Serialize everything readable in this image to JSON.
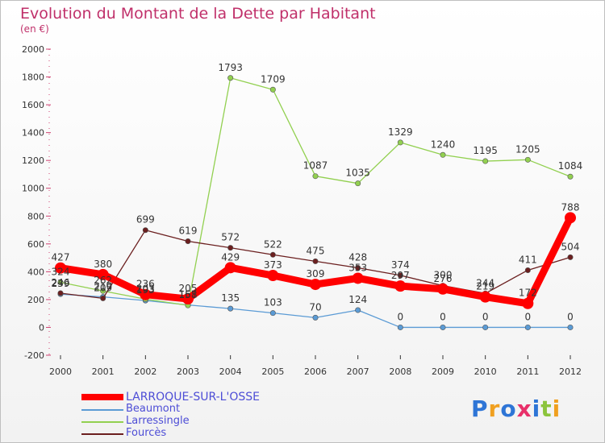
{
  "chart_data": {
    "type": "line",
    "title": "Evolution du Montant de la Dette par Habitant",
    "subtitle": "(en €)",
    "categories": [
      "2000",
      "2001",
      "2002",
      "2003",
      "2004",
      "2005",
      "2006",
      "2007",
      "2008",
      "2009",
      "2010",
      "2011",
      "2012"
    ],
    "ylim": [
      -200,
      2000
    ],
    "yticks": [
      -200,
      0,
      200,
      400,
      600,
      800,
      1000,
      1200,
      1400,
      1600,
      1800,
      2000
    ],
    "series": [
      {
        "name": "LARROQUE-SUR-L'OSSE",
        "color": "#ff0000",
        "values": [
          427,
          380,
          236,
          205,
          429,
          373,
          309,
          353,
          297,
          276,
          219,
          172,
          788
        ]
      },
      {
        "name": "Beaumont",
        "color": "#5b9bd5",
        "values": [
          239,
          219,
          193,
          161,
          135,
          103,
          70,
          124,
          0,
          0,
          0,
          0,
          0
        ]
      },
      {
        "name": "Larressingle",
        "color": "#92d050",
        "values": [
          324,
          262,
          203,
          158,
          1793,
          1709,
          1087,
          1035,
          1329,
          1240,
          1195,
          1205,
          1084
        ]
      },
      {
        "name": "Fourcès",
        "color": "#6b1f1f",
        "values": [
          246,
          209,
          699,
          619,
          572,
          522,
          475,
          428,
          374,
          300,
          244,
          411,
          504
        ]
      }
    ],
    "grid": false,
    "legend": "bottom-left"
  },
  "logo": {
    "p": "P",
    "r": "r",
    "o": "o",
    "x": "x",
    "i": "i",
    "t": "t",
    "i2": "i"
  }
}
